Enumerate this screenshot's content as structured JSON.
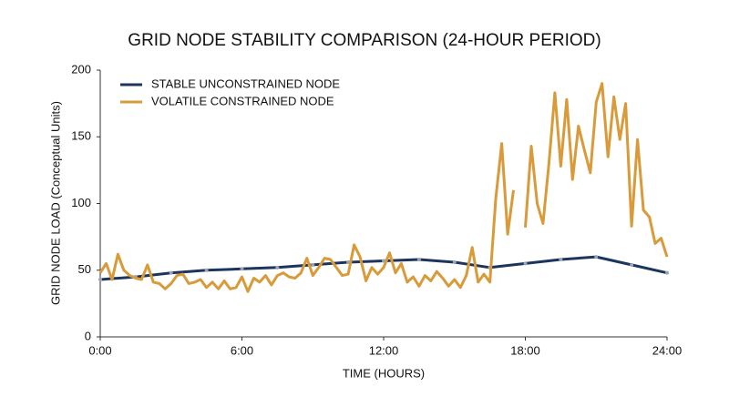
{
  "chart_data": {
    "type": "line",
    "title": "GRID NODE STABILITY COMPARISON (24-HOUR PERIOD)",
    "x_label": "TIME (HOURS)",
    "y_label": "GRID NODE LOAD (Conceptual Units)",
    "xlim": [
      0,
      24
    ],
    "xticks": [
      {
        "value": 0,
        "label": "0:00"
      },
      {
        "value": 6,
        "label": "6:00"
      },
      {
        "value": 12,
        "label": "12:00"
      },
      {
        "value": 18,
        "label": "18:00"
      },
      {
        "value": 24,
        "label": "24:00"
      }
    ],
    "ylim": [
      0,
      200
    ],
    "yticks": [
      0,
      50,
      100,
      150,
      200
    ],
    "grid": false,
    "legend": "upper left",
    "series": [
      {
        "name": "STABLE UNCONSTRAINED NODE",
        "color": "#1c355e",
        "x": [
          0,
          1.5,
          3,
          4.5,
          6,
          7.5,
          9,
          10.5,
          12,
          13.5,
          15,
          16.5,
          18,
          19.5,
          21,
          22.5,
          24
        ],
        "values": [
          43,
          45,
          48,
          50,
          51,
          52,
          54,
          56,
          57,
          58,
          56,
          52,
          55,
          58,
          60,
          54,
          48
        ]
      },
      {
        "name": "VOLATILE CONSTRAINED NODE",
        "color": "#d99a3a",
        "x": [
          0,
          0.25,
          0.5,
          0.75,
          1,
          1.25,
          1.5,
          1.75,
          2,
          2.25,
          2.5,
          2.75,
          3,
          3.25,
          3.5,
          3.75,
          4,
          4.25,
          4.5,
          4.75,
          5,
          5.25,
          5.5,
          5.75,
          6,
          6.25,
          6.5,
          6.75,
          7,
          7.25,
          7.5,
          7.75,
          8,
          8.25,
          8.5,
          8.75,
          9,
          9.25,
          9.5,
          9.75,
          10,
          10.25,
          10.5,
          10.75,
          11,
          11.25,
          11.5,
          11.75,
          12,
          12.25,
          12.5,
          12.75,
          13,
          13.25,
          13.5,
          13.75,
          14,
          14.25,
          14.5,
          14.75,
          15,
          15.25,
          15.5,
          15.75,
          16,
          16.25,
          16.5,
          16.75,
          17,
          17.25,
          17.5,
          17.75,
          18,
          18.25,
          18.5,
          18.75,
          19,
          19.25,
          19.5,
          19.75,
          20,
          20.25,
          20.5,
          20.75,
          21,
          21.25,
          21.5,
          21.75,
          22,
          22.25,
          22.5,
          22.75,
          23,
          23.25,
          23.5,
          23.75,
          24
        ],
        "values": [
          48,
          55,
          43,
          62,
          50,
          46,
          44,
          43,
          54,
          41,
          40,
          36,
          40,
          46,
          47,
          40,
          41,
          43,
          37,
          41,
          36,
          42,
          36,
          37,
          45,
          34,
          44,
          41,
          46,
          39,
          46,
          48,
          45,
          44,
          48,
          59,
          46,
          52,
          59,
          58,
          52,
          46,
          47,
          69,
          60,
          42,
          52,
          47,
          52,
          63,
          48,
          55,
          41,
          45,
          38,
          46,
          42,
          49,
          44,
          38,
          43,
          37,
          46,
          67,
          41,
          47,
          41,
          104,
          145,
          77,
          110,
          null,
          82,
          143,
          100,
          85,
          130,
          183,
          128,
          178,
          118,
          158,
          140,
          123,
          176,
          190,
          135,
          180,
          148,
          175,
          83,
          148,
          95,
          90,
          70,
          74,
          60
        ]
      }
    ]
  }
}
